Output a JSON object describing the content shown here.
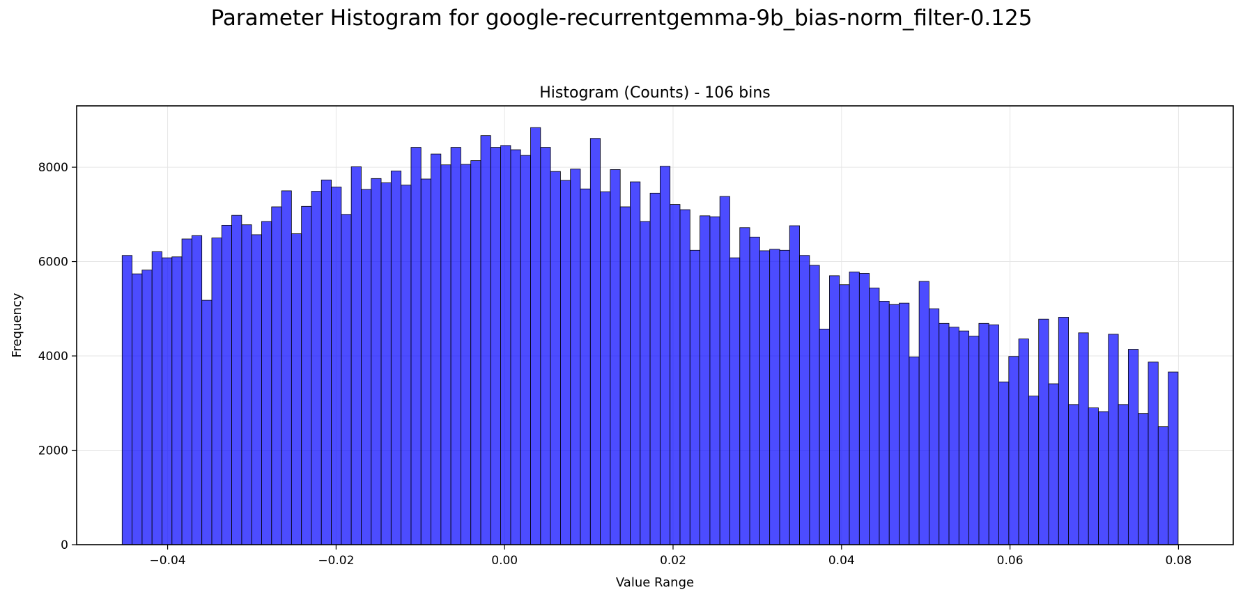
{
  "figure_title": "Parameter Histogram for google-recurrentgemma-9b_bias-norm_filter-0.125",
  "colors": {
    "bar_fill": "#0000ff",
    "bar_edge": "#000000",
    "grid": "#e6e6e6"
  },
  "chart_data": {
    "type": "bar",
    "title": "Histogram (Counts) - 106 bins",
    "xlabel": "Value Range",
    "ylabel": "Frequency",
    "xlim": [
      -0.0508,
      0.0865
    ],
    "ylim": [
      0,
      9300
    ],
    "grid": true,
    "bin_start": -0.0454,
    "bin_width": 0.0011826,
    "xticks": [
      -0.04,
      -0.02,
      0.0,
      0.02,
      0.04,
      0.06,
      0.08
    ],
    "xtick_labels": [
      "−0.04",
      "−0.02",
      "0.00",
      "0.02",
      "0.04",
      "0.06",
      "0.08"
    ],
    "yticks": [
      0,
      2000,
      4000,
      6000,
      8000
    ],
    "ytick_labels": [
      "0",
      "2000",
      "4000",
      "6000",
      "8000"
    ],
    "values": [
      6130,
      5740,
      5820,
      6210,
      6080,
      6100,
      6480,
      6550,
      5180,
      6500,
      6770,
      6980,
      6780,
      6570,
      6850,
      7160,
      7500,
      6590,
      7170,
      7490,
      7730,
      7580,
      7000,
      8010,
      7530,
      7760,
      7670,
      7920,
      7620,
      8420,
      7750,
      8280,
      8050,
      8420,
      8060,
      8140,
      8670,
      8420,
      8460,
      8370,
      8250,
      8840,
      8420,
      7910,
      7720,
      7960,
      7540,
      8610,
      7480,
      7950,
      7160,
      7690,
      6850,
      7450,
      8020,
      7210,
      7100,
      6240,
      6970,
      6950,
      7380,
      6080,
      6720,
      6520,
      6230,
      6260,
      6240,
      6760,
      6130,
      5920,
      4570,
      5700,
      5510,
      5780,
      5750,
      5440,
      5160,
      5090,
      5120,
      3980,
      5580,
      5000,
      4690,
      4610,
      4530,
      4420,
      4690,
      4660,
      3450,
      3990,
      4360,
      3150,
      4780,
      3410,
      4820,
      2970,
      4490,
      2900,
      2820,
      4460,
      2970,
      4140,
      2780,
      3870,
      2500,
      3660
    ]
  }
}
